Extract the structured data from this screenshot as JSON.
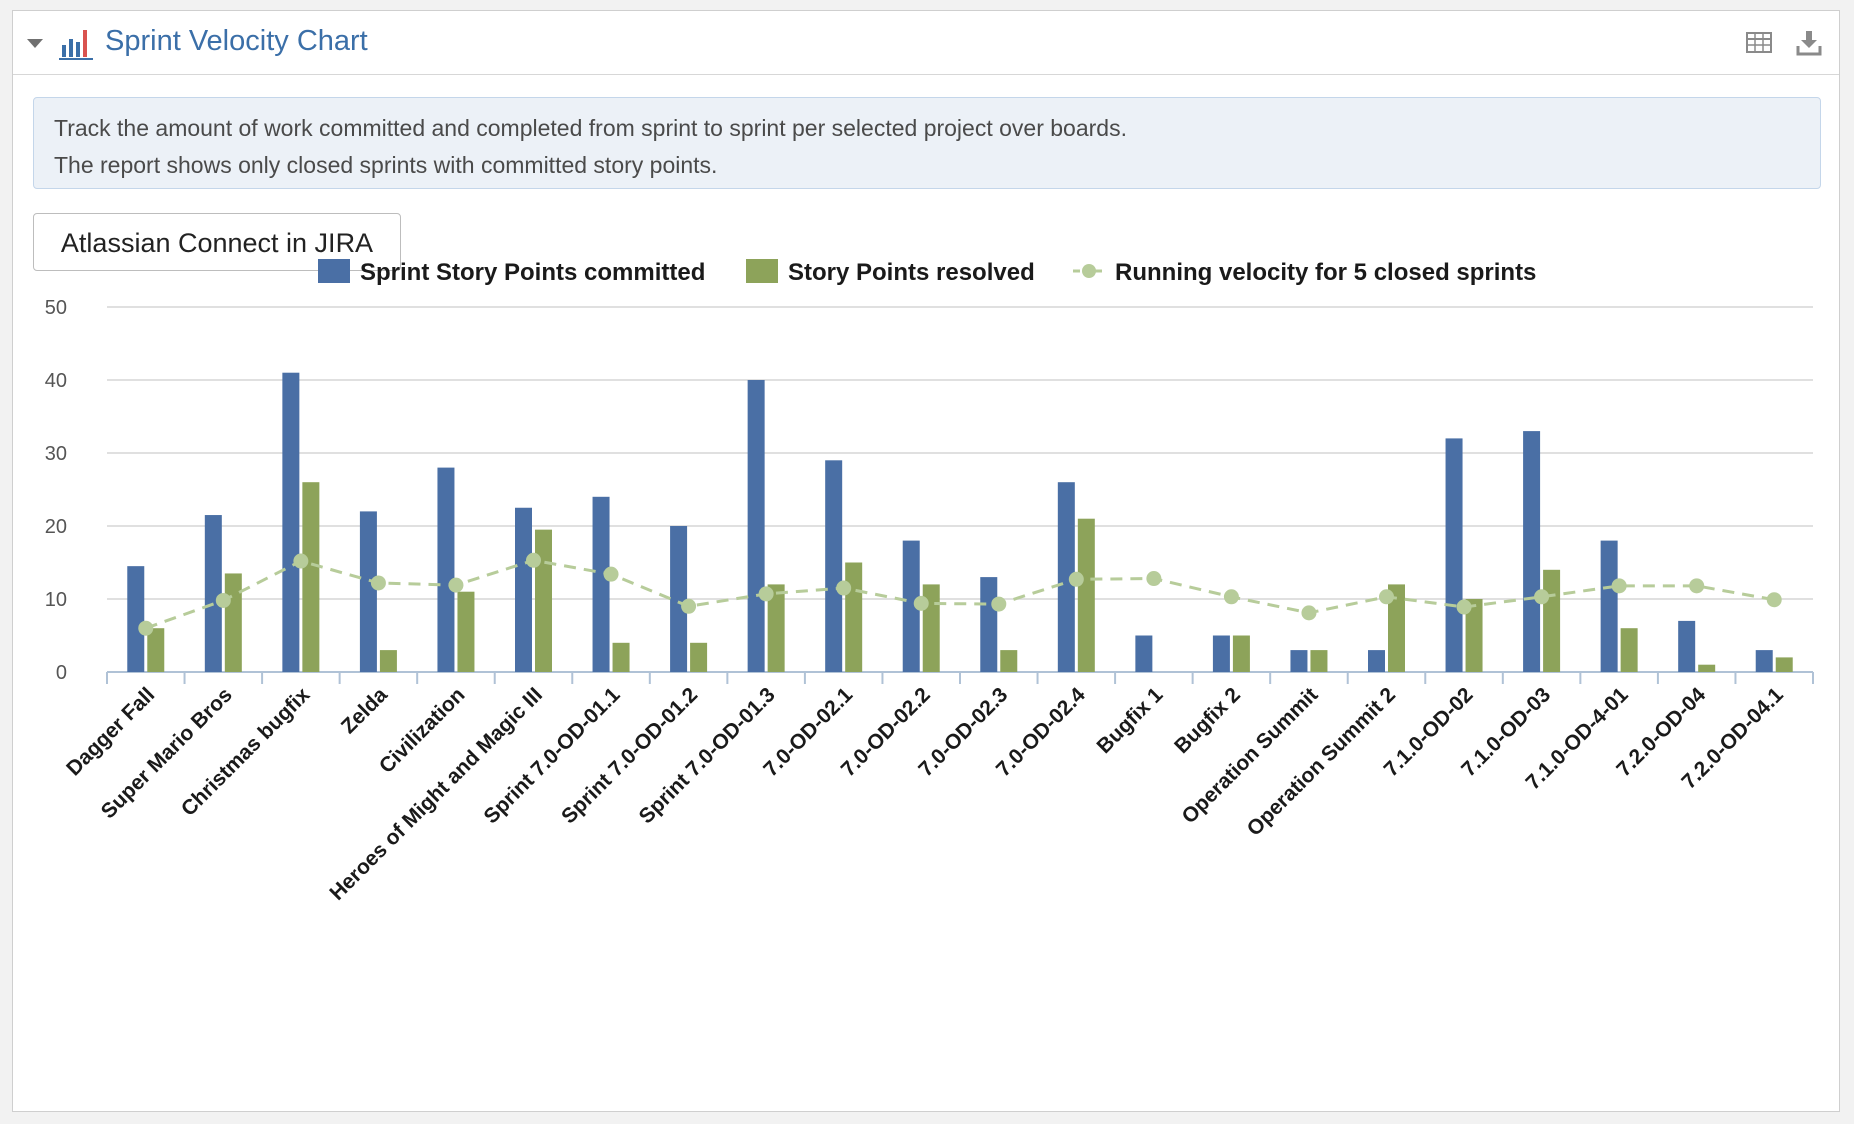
{
  "header": {
    "title": "Sprint Velocity Chart",
    "collapse_icon": "caret-down-icon",
    "chart_icon": "bar-chart-icon",
    "table_icon": "table-icon",
    "download_icon": "download-icon"
  },
  "info": {
    "line1": "Track the amount of work committed and completed from sprint to sprint per selected project over boards.",
    "line2": "The report shows only closed sprints with committed story points."
  },
  "project_button": {
    "label": "Atlassian Connect in JIRA"
  },
  "colors": {
    "committed": "#4a6fa5",
    "resolved": "#8da35a",
    "velocity": "#b7cc9a",
    "grid": "#d6d6d6",
    "title": "#3b6fa8"
  },
  "chart_data": {
    "type": "bar",
    "categories": [
      "Dagger Fall",
      "Super Mario Bros",
      "Christmas bugfix",
      "Zelda",
      "Civilization",
      "Heroes of Might and Magic III",
      "Sprint 7.0-OD-01.1",
      "Sprint 7.0-OD-01.2",
      "Sprint 7.0-OD-01.3",
      "7.0-OD-02.1",
      "7.0-OD-02.2",
      "7.0-OD-02.3",
      "7.0-OD-02.4",
      "Bugfix 1",
      "Bugfix 2",
      "Operation Summit",
      "Operation Summit 2",
      "7.1.0-OD-02",
      "7.1.0-OD-03",
      "7.1.0-OD-4-01",
      "7.2.0-OD-04",
      "7.2.0-OD-04.1"
    ],
    "series": [
      {
        "name": "Sprint Story Points committed",
        "type": "bar",
        "values": [
          14.5,
          21.5,
          41,
          22,
          28,
          22.5,
          24,
          20,
          40,
          29,
          18,
          13,
          26,
          5,
          5,
          3,
          3,
          32,
          33,
          18,
          7,
          3
        ]
      },
      {
        "name": "Story Points resolved",
        "type": "bar",
        "values": [
          6,
          13.5,
          26,
          3,
          11,
          19.5,
          4,
          4,
          12,
          15,
          12,
          3,
          21,
          0,
          5,
          3,
          12,
          10,
          14,
          6,
          1,
          2
        ]
      },
      {
        "name": "Running velocity for 5 closed sprints",
        "type": "line",
        "values": [
          6,
          9.8,
          15.2,
          12.2,
          11.9,
          15.3,
          13.4,
          9,
          10.7,
          11.5,
          9.4,
          9.3,
          12.7,
          12.8,
          10.3,
          8.1,
          10.3,
          8.9,
          10.3,
          11.8,
          11.8,
          9.9
        ]
      }
    ],
    "ylim": [
      0,
      50
    ],
    "yticks": [
      0,
      10,
      20,
      30,
      40,
      50
    ],
    "grid": true,
    "legend_position": "top-center"
  }
}
